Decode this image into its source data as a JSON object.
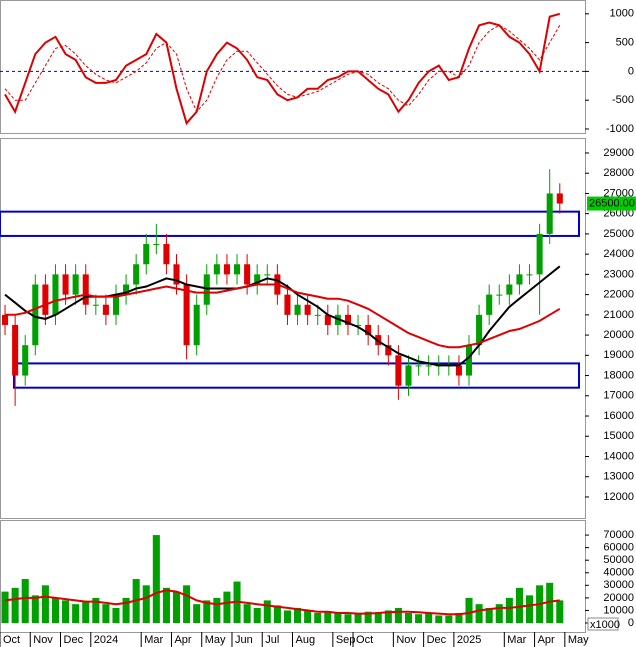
{
  "chart_data": [
    {
      "type": "line",
      "ylim": [
        -1070,
        1240
      ],
      "yticks": [
        1000,
        500,
        0,
        -500,
        -1000
      ],
      "reference_line": 0,
      "reference_color": "#0000cc",
      "series": [
        {
          "color": "#dd0000",
          "dash": false,
          "values": [
            -400,
            -700,
            -200,
            300,
            500,
            600,
            300,
            200,
            -100,
            -200,
            -200,
            -150,
            100,
            200,
            300,
            650,
            500,
            -300,
            -900,
            -700,
            0,
            300,
            500,
            400,
            200,
            -100,
            -150,
            -400,
            -500,
            -450,
            -300,
            -300,
            -150,
            -100,
            0,
            0,
            -150,
            -300,
            -400,
            -700,
            -500,
            -200,
            0,
            100,
            -150,
            -100,
            400,
            800,
            850,
            800,
            600,
            500,
            300,
            0,
            950,
            1000,
            null,
            null
          ]
        },
        {
          "color": "#dd0000",
          "dash": true,
          "values": [
            -300,
            -500,
            -500,
            -200,
            100,
            400,
            450,
            300,
            100,
            -50,
            -150,
            -200,
            -100,
            0,
            150,
            400,
            500,
            300,
            -300,
            -700,
            -500,
            -100,
            200,
            350,
            350,
            150,
            -50,
            -250,
            -400,
            -450,
            -400,
            -350,
            -250,
            -150,
            -50,
            0,
            -50,
            -200,
            -300,
            -500,
            -600,
            -400,
            -150,
            0,
            0,
            -100,
            100,
            500,
            700,
            800,
            700,
            550,
            400,
            200,
            500,
            800,
            null,
            null
          ]
        }
      ]
    },
    {
      "type": "candlestick",
      "ylim": [
        10960,
        29740
      ],
      "yticks": [
        29000,
        28000,
        27000,
        26000,
        25000,
        24000,
        23000,
        22000,
        21000,
        20000,
        19000,
        18000,
        17000,
        16000,
        15000,
        14000,
        13000,
        12000
      ],
      "up_color": "#00a000",
      "down_color": "#e00000",
      "open": [
        21000,
        20500,
        18000,
        19500,
        22500,
        21000,
        23000,
        22000,
        23000,
        21500,
        21500,
        21000,
        22000,
        22500,
        23500,
        24500,
        24500,
        23500,
        22500,
        19500,
        21500,
        23000,
        23500,
        23000,
        23500,
        22500,
        23000,
        23000,
        22000,
        21000,
        21500,
        21000,
        21000,
        20500,
        21000,
        20500,
        20500,
        20000,
        19500,
        19000,
        17500,
        18500,
        18500,
        18500,
        18500,
        18500,
        18000,
        19500,
        21000,
        22000,
        22000,
        22500,
        23000,
        23000,
        25000,
        27000,
        null,
        null
      ],
      "high": [
        21500,
        21000,
        20000,
        23000,
        23000,
        23500,
        23500,
        23500,
        23500,
        22000,
        22000,
        22500,
        23000,
        24000,
        25000,
        25500,
        25000,
        24000,
        23000,
        22000,
        23500,
        24000,
        24000,
        24000,
        24000,
        23500,
        23500,
        23500,
        22500,
        22000,
        22000,
        21500,
        21500,
        21500,
        21500,
        21000,
        21000,
        20500,
        20000,
        19500,
        19000,
        19000,
        19000,
        19000,
        19000,
        19000,
        20000,
        21500,
        22500,
        22500,
        23000,
        23500,
        23500,
        25500,
        28200,
        27500,
        null,
        null
      ],
      "low": [
        20000,
        16500,
        17500,
        19000,
        20500,
        20500,
        21500,
        21500,
        21000,
        21000,
        20500,
        20500,
        21500,
        22000,
        23000,
        24000,
        23000,
        22000,
        18800,
        19000,
        21000,
        22500,
        22500,
        22500,
        22000,
        22000,
        22500,
        21500,
        20500,
        20500,
        20500,
        20500,
        20000,
        20000,
        20000,
        20000,
        19500,
        19000,
        18500,
        16800,
        17000,
        18000,
        18000,
        18000,
        18000,
        17500,
        17500,
        19000,
        20500,
        21500,
        21500,
        22000,
        22500,
        21000,
        24500,
        26000,
        null,
        null
      ],
      "close": [
        20500,
        18000,
        19500,
        22500,
        21000,
        23000,
        22000,
        23000,
        21500,
        21500,
        21000,
        22000,
        22500,
        23500,
        24500,
        24500,
        23500,
        22500,
        19500,
        21500,
        23000,
        23500,
        23000,
        23500,
        22500,
        23000,
        23000,
        22000,
        21000,
        21500,
        21000,
        21000,
        20500,
        21000,
        20500,
        20500,
        20000,
        19500,
        19000,
        17500,
        18500,
        18500,
        18500,
        18500,
        18500,
        18000,
        19500,
        21000,
        22000,
        22000,
        22500,
        23000,
        23000,
        25000,
        27000,
        26500,
        null,
        null
      ],
      "series": [
        {
          "color": "#000000",
          "values": [
            22000,
            21600,
            21200,
            20900,
            20800,
            21000,
            21300,
            21600,
            21900,
            21900,
            21900,
            22000,
            22100,
            22300,
            22400,
            22600,
            22800,
            22700,
            22500,
            22400,
            22300,
            22300,
            22300,
            22300,
            22400,
            22600,
            22800,
            22700,
            22400,
            22000,
            21700,
            21400,
            21000,
            20800,
            20600,
            20400,
            20100,
            19700,
            19400,
            19100,
            18900,
            18700,
            18600,
            18500,
            18500,
            18500,
            18900,
            19500,
            20200,
            20800,
            21400,
            21800,
            22200,
            22600,
            23000,
            23400,
            null,
            null
          ]
        },
        {
          "color": "#dd0000",
          "values": [
            21000,
            21000,
            21100,
            21300,
            21500,
            21700,
            21800,
            21900,
            22000,
            21900,
            21900,
            21900,
            22000,
            22100,
            22200,
            22300,
            22400,
            22300,
            22200,
            22100,
            22100,
            22100,
            22200,
            22300,
            22400,
            22500,
            22500,
            22500,
            22300,
            22100,
            22000,
            21900,
            21800,
            21800,
            21700,
            21500,
            21300,
            21000,
            20700,
            20400,
            20100,
            19900,
            19700,
            19500,
            19400,
            19400,
            19500,
            19600,
            19800,
            20000,
            20200,
            20300,
            20500,
            20700,
            21000,
            21300,
            null,
            null
          ]
        }
      ],
      "zones": [
        {
          "ymin": 24900,
          "ymax": 26100,
          "color": "#0000cc"
        },
        {
          "ymin": 17400,
          "ymax": 18600,
          "color": "#0000cc"
        }
      ],
      "last_price": {
        "value": 26500,
        "label": "26500.00"
      },
      "last_price_color": "#00cc00"
    },
    {
      "type": "bar",
      "ylim": [
        0,
        82000
      ],
      "yticks": [
        70000,
        60000,
        50000,
        40000,
        30000,
        20000,
        10000,
        0
      ],
      "unit_label": "x1000",
      "categories": [
        "Oct",
        null,
        null,
        "Nov",
        null,
        null,
        "Dec",
        null,
        null,
        "2024",
        null,
        null,
        null,
        null,
        "Mar",
        null,
        null,
        "Apr",
        null,
        null,
        "May",
        null,
        null,
        "Jun",
        null,
        null,
        "Jul",
        null,
        null,
        "Aug",
        null,
        null,
        null,
        "Sep",
        null,
        "Oct",
        null,
        null,
        null,
        "Nov",
        null,
        null,
        "Dec",
        null,
        null,
        "2025",
        null,
        null,
        null,
        null,
        "Mar",
        null,
        null,
        "Apr",
        null,
        null,
        "May",
        null
      ],
      "series": [
        {
          "kind": "bar",
          "color": "#00a000",
          "values": [
            25000,
            28000,
            35000,
            22000,
            30000,
            20000,
            18000,
            15000,
            17000,
            20000,
            15000,
            12000,
            20000,
            35000,
            30000,
            70000,
            28000,
            25000,
            30000,
            15000,
            18000,
            20000,
            25000,
            33000,
            15000,
            12000,
            18000,
            14000,
            10000,
            12000,
            10000,
            8000,
            9000,
            8000,
            7000,
            8000,
            9000,
            8000,
            10000,
            12000,
            8000,
            7000,
            8000,
            6000,
            6000,
            8000,
            20000,
            15000,
            12000,
            15000,
            20000,
            28000,
            22000,
            30000,
            32000,
            18000,
            null,
            null
          ]
        },
        {
          "kind": "line",
          "color": "#dd0000",
          "values": [
            18000,
            19000,
            20000,
            20000,
            21000,
            20000,
            19000,
            18000,
            17000,
            17000,
            16000,
            15000,
            16000,
            18000,
            20000,
            24000,
            26000,
            25000,
            22000,
            18000,
            16000,
            15000,
            16000,
            17000,
            16000,
            15000,
            14000,
            13000,
            12000,
            11000,
            10000,
            9000,
            9000,
            8000,
            8000,
            7500,
            7500,
            8000,
            8500,
            9000,
            9000,
            8500,
            8000,
            7500,
            7000,
            7000,
            8000,
            10000,
            11000,
            12000,
            12000,
            13000,
            14000,
            15000,
            17000,
            18000,
            null,
            null
          ]
        }
      ]
    }
  ]
}
